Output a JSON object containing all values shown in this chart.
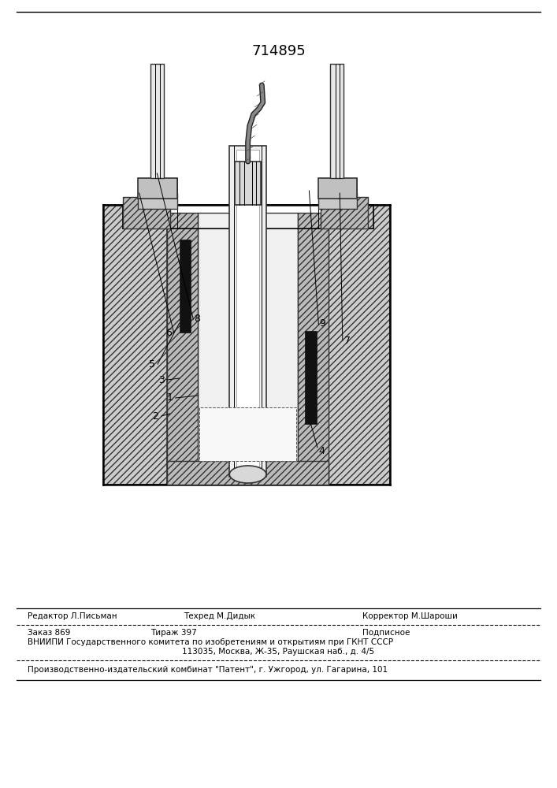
{
  "patent_number": "714895",
  "bg_color": "#ffffff",
  "line_color": "#000000",
  "footer_line1_left": "Редактор Л.Письман",
  "footer_line1_mid": "Техред М.Дидык",
  "footer_line1_right": "Корректор М.Шароши",
  "footer_line2_left": "Заказ 869",
  "footer_line2_mid": "Тираж 397",
  "footer_line2_right": "Подписное",
  "footer_line3": "ВНИИПИ Государственного комитета по изобретениям и открытиям при ГКНТ СССР",
  "footer_line4": "113035, Москва, Ж-35, Раушская наб., д. 4/5",
  "footer_line5": "Производственно-издательский комбинат \"Патент\", г. Ужгород, ул. Гагарина, 101"
}
